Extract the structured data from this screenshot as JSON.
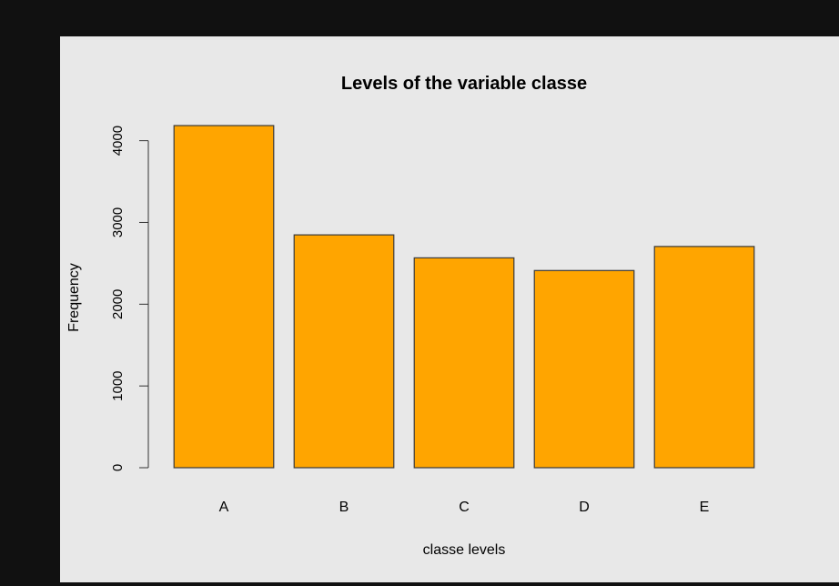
{
  "chart_data": {
    "type": "bar",
    "title": "Levels of the variable classe",
    "xlabel": "classe levels",
    "ylabel": "Frequency",
    "categories": [
      "A",
      "B",
      "C",
      "D",
      "E"
    ],
    "values": [
      4185,
      2848,
      2567,
      2412,
      2706
    ],
    "ylim": [
      0,
      4185
    ],
    "yticks": [
      0,
      1000,
      2000,
      3000,
      4000
    ],
    "grid": false,
    "legend": "none",
    "bar_color": "#ffa500",
    "bar_stroke": "#3a3a3a",
    "panel_background": "#e8e8e8",
    "page_background": "#111111"
  }
}
